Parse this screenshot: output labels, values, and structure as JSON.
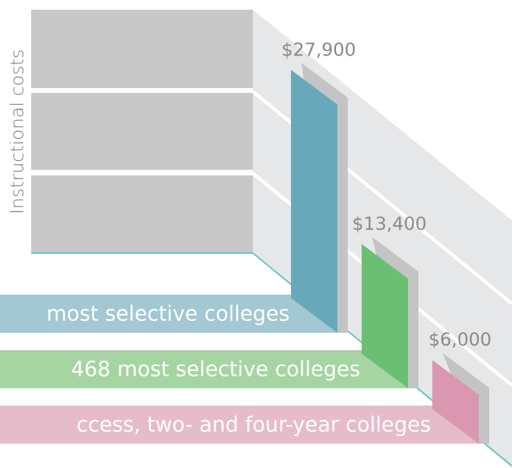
{
  "chart_data": {
    "type": "bar",
    "y_label": "Instructional costs",
    "categories": [
      "most selective colleges",
      "468 most selective colleges",
      "ccess, two- and four-year colleges"
    ],
    "series": [
      {
        "name": null,
        "colors": [
          "#67a9bb",
          "#6bbf73",
          "#d998b0"
        ],
        "values": [
          27900,
          13400,
          6000
        ],
        "value_labels": [
          "$27,900",
          "$13,400",
          "$6,000"
        ]
      }
    ],
    "ribbon_colors": [
      "#a3c7d3",
      "#a6d4a3",
      "#e6bccb"
    ]
  }
}
